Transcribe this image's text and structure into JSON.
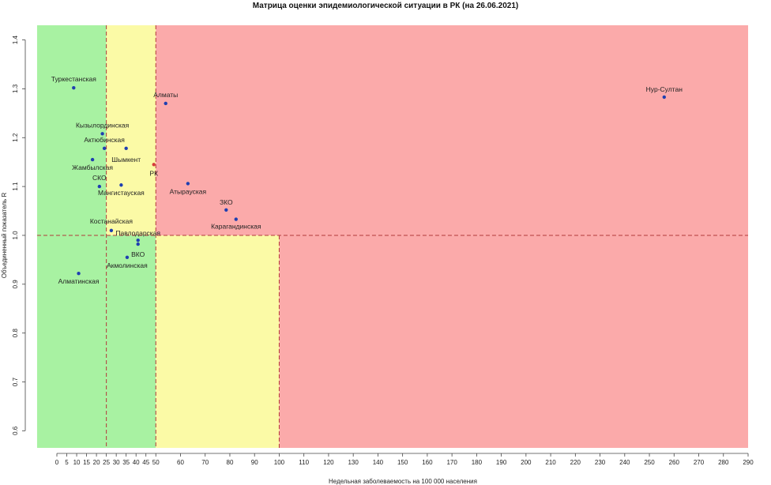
{
  "chart_data": {
    "type": "scatter",
    "title": "Матрица оценки эпидемиологической ситуации в РК (на 26.06.2021)",
    "xlabel": "Недельная заболеваемость на 100 000 населения",
    "ylabel": "Объединенный показатель R",
    "xlim": [
      -10,
      290
    ],
    "ylim": [
      0.565,
      1.43
    ],
    "x_ticks": [
      0,
      5,
      10,
      15,
      20,
      25,
      30,
      35,
      40,
      45,
      50,
      60,
      70,
      80,
      90,
      100,
      110,
      120,
      130,
      140,
      150,
      160,
      170,
      180,
      190,
      200,
      210,
      220,
      230,
      240,
      250,
      260,
      270,
      280,
      290
    ],
    "y_ticks": [
      0.6,
      0.7,
      0.8,
      0.9,
      1.0,
      1.1,
      1.2,
      1.3,
      1.4
    ],
    "y_tick_labels": [
      "0.6",
      "0.7",
      "0.8",
      "0.9",
      "1.0",
      "1.1",
      "1.2",
      "1.3",
      "1.4"
    ],
    "zones": [
      {
        "x_range": [
          -10,
          25
        ],
        "y_range": [
          0.565,
          1.43
        ],
        "color": "#a8f2a2"
      },
      {
        "x_range": [
          25,
          50
        ],
        "y_range": [
          1.0,
          1.43
        ],
        "color": "#fbfaa6"
      },
      {
        "x_range": [
          25,
          50
        ],
        "y_range": [
          0.565,
          1.0
        ],
        "color": "#a8f2a2"
      },
      {
        "x_range": [
          50,
          100
        ],
        "y_range": [
          0.565,
          1.0
        ],
        "color": "#fbfaa6"
      },
      {
        "x_range": [
          50,
          290
        ],
        "y_range": [
          1.0,
          1.43
        ],
        "color": "#fbaaaa"
      },
      {
        "x_range": [
          100,
          290
        ],
        "y_range": [
          0.565,
          1.0
        ],
        "color": "#fbaaaa"
      }
    ],
    "threshold_lines": [
      {
        "orientation": "vertical",
        "x": 25,
        "y_range": [
          0.565,
          1.43
        ]
      },
      {
        "orientation": "vertical",
        "x": 50,
        "y_range": [
          0.565,
          1.43
        ]
      },
      {
        "orientation": "vertical",
        "x": 100,
        "y_range": [
          0.565,
          1.0
        ]
      },
      {
        "orientation": "horizontal",
        "y": 1.0,
        "x_range": [
          -10,
          290
        ]
      }
    ],
    "line_color": "#b23b3b",
    "point_color": "#1f3fb0",
    "highlight_color": "#d63c3c",
    "points": [
      {
        "label": "Туркестанская",
        "x": 8.5,
        "y": 1.302
      },
      {
        "label": "Кызылординская",
        "x": 23,
        "y": 1.208
      },
      {
        "label": "Актюбинская",
        "x": 24,
        "y": 1.178
      },
      {
        "label": "Жамбылская",
        "x": 18,
        "y": 1.155
      },
      {
        "label": "СКО",
        "x": 21.5,
        "y": 1.1
      },
      {
        "label": "Шымкент",
        "x": 35,
        "y": 1.178
      },
      {
        "label": "Мангистауская",
        "x": 32.5,
        "y": 1.103
      },
      {
        "label": "Костанайская",
        "x": 27.5,
        "y": 1.01
      },
      {
        "label": "Павлодарская",
        "x": 41,
        "y": 0.99
      },
      {
        "label": "ВКО",
        "x": 41,
        "y": 0.982
      },
      {
        "label": "Акмолинская",
        "x": 35.5,
        "y": 0.955
      },
      {
        "label": "Алматинская",
        "x": 11,
        "y": 0.922
      },
      {
        "label": "Алматы",
        "x": 54,
        "y": 1.27
      },
      {
        "label": "РК",
        "x": 49,
        "y": 1.145,
        "highlight": true
      },
      {
        "label": "Атырауская",
        "x": 63,
        "y": 1.106
      },
      {
        "label": "ЗКО",
        "x": 78.5,
        "y": 1.052
      },
      {
        "label": "Карагандинская",
        "x": 82.5,
        "y": 1.033
      },
      {
        "label": "Нур-Султан",
        "x": 256,
        "y": 1.283
      }
    ]
  }
}
